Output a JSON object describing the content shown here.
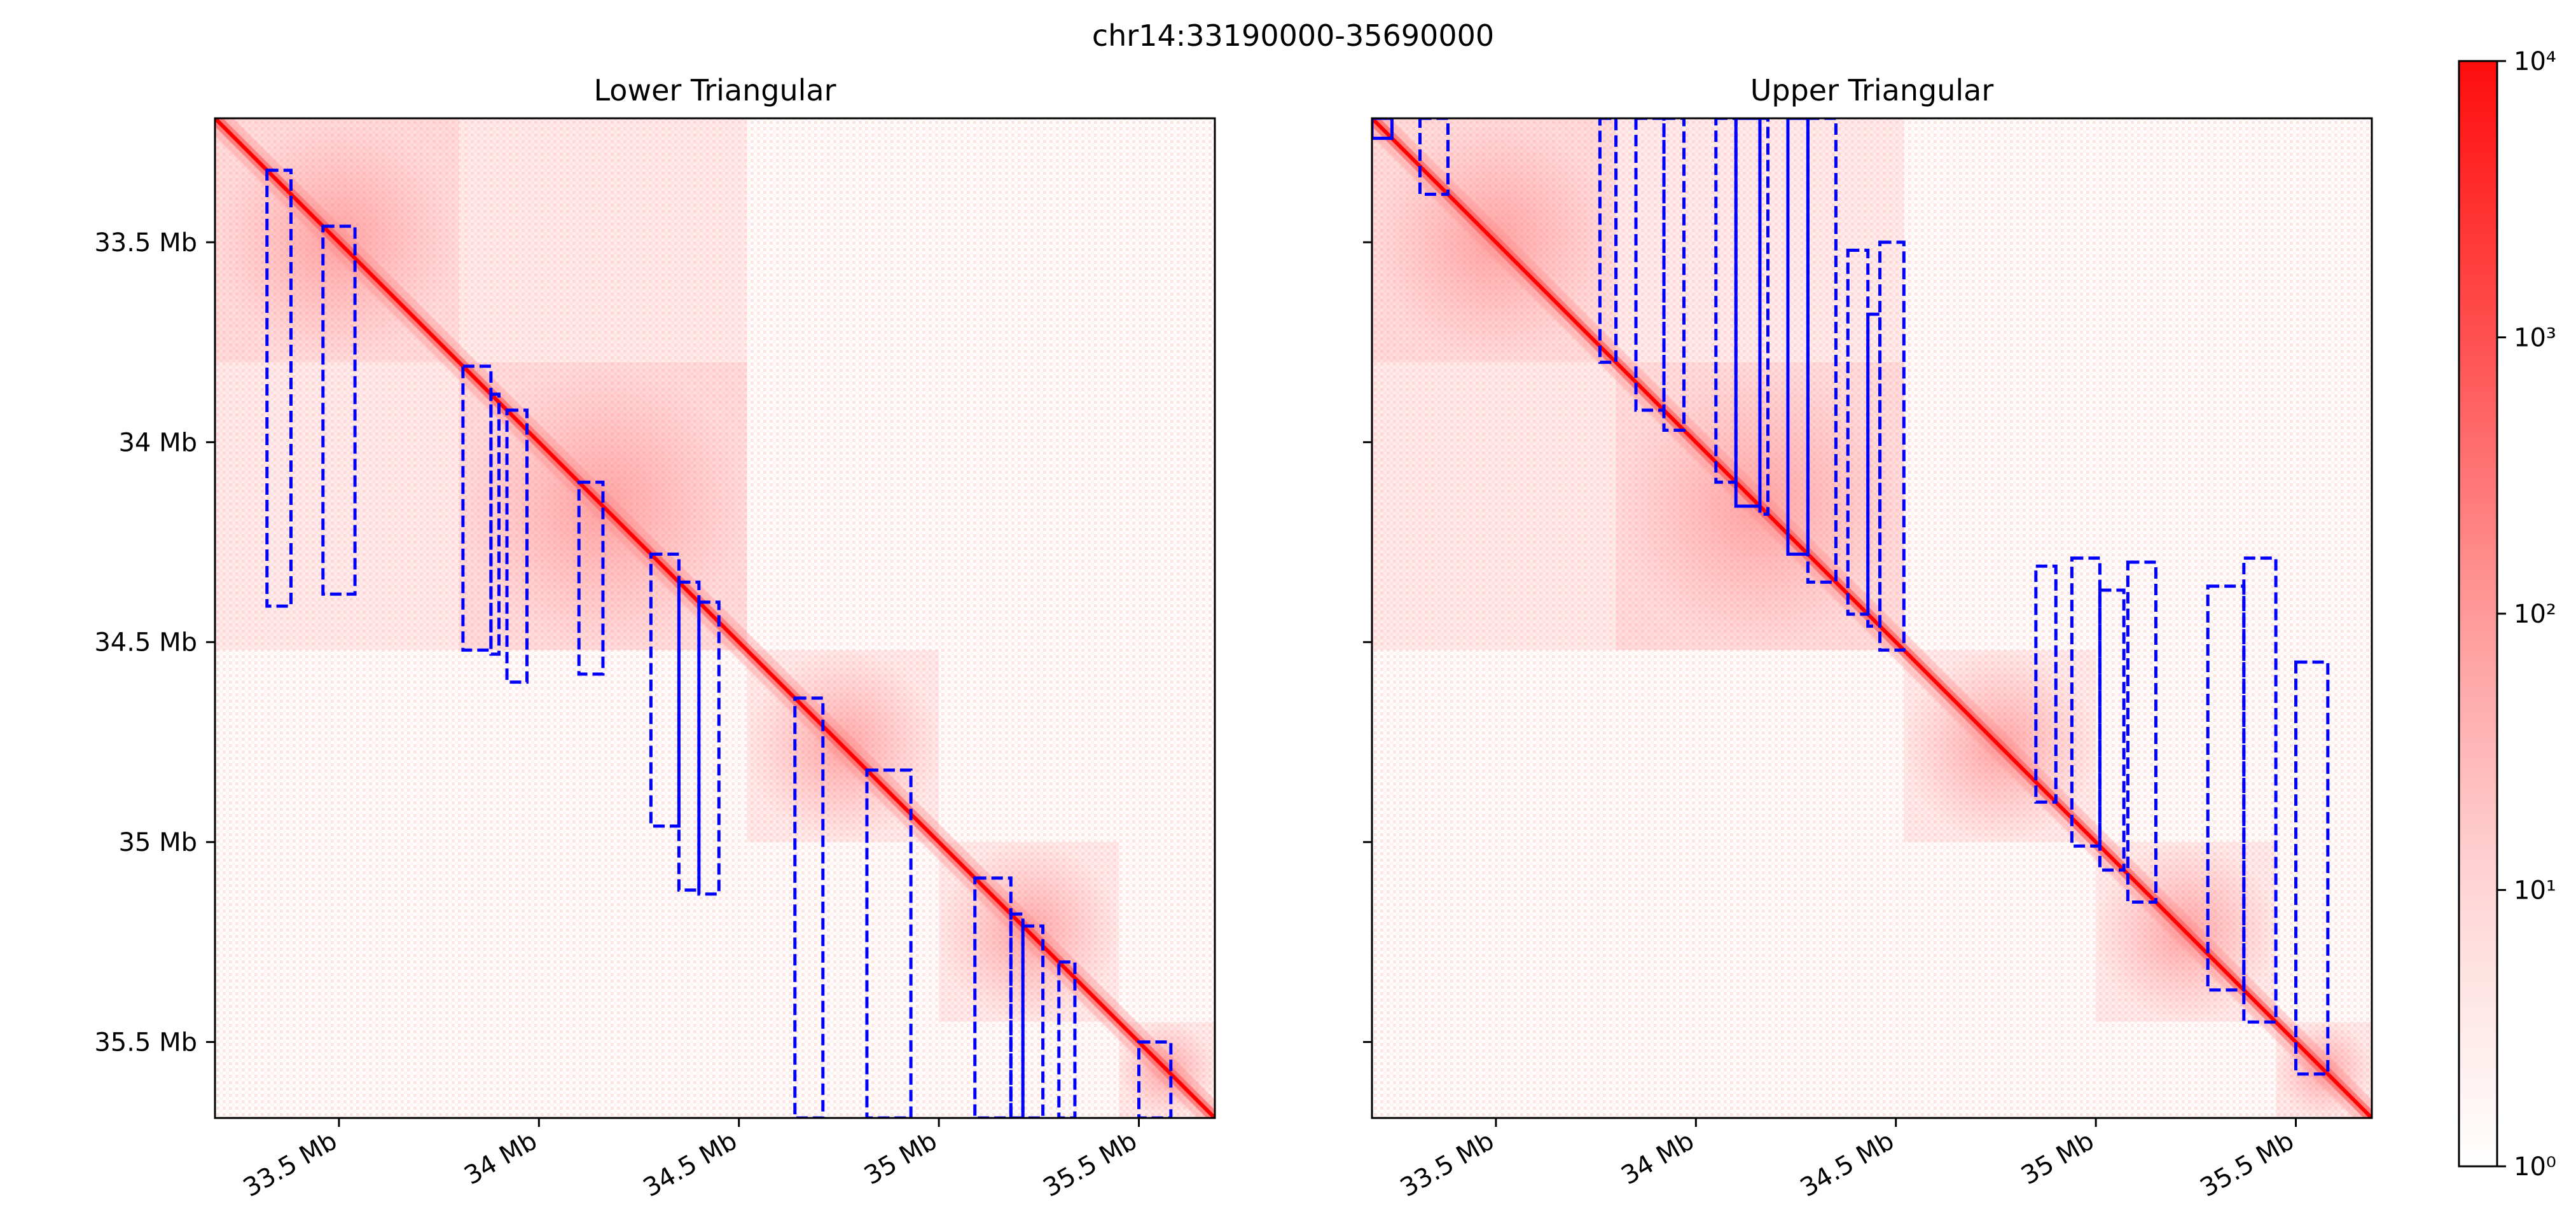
{
  "figure": {
    "title": "chr14:33190000-35690000"
  },
  "chart_data": [
    {
      "type": "heatmap",
      "title": "Lower Triangular",
      "region": "chr14:33190000-35690000",
      "xlim_mb": [
        33.19,
        35.69
      ],
      "ylim_mb": [
        33.19,
        35.69
      ],
      "y_inverted": true,
      "xticks": [
        {
          "value": 33.5,
          "label": "33.5 Mb"
        },
        {
          "value": 34.0,
          "label": "34 Mb"
        },
        {
          "value": 34.5,
          "label": "34.5 Mb"
        },
        {
          "value": 35.0,
          "label": "35 Mb"
        },
        {
          "value": 35.5,
          "label": "35.5 Mb"
        }
      ],
      "yticks": [
        {
          "value": 33.5,
          "label": "33.5 Mb"
        },
        {
          "value": 34.0,
          "label": "34 Mb"
        },
        {
          "value": 34.5,
          "label": "34.5 Mb"
        },
        {
          "value": 35.0,
          "label": "35 Mb"
        },
        {
          "value": 35.5,
          "label": "35.5 Mb"
        }
      ],
      "show_ytick_labels": true,
      "loops": [
        {
          "x0": 33.32,
          "x1": 33.38,
          "y0": 33.32,
          "y1": 34.41,
          "style": "dashed"
        },
        {
          "x0": 33.46,
          "x1": 33.54,
          "y0": 33.46,
          "y1": 34.38,
          "style": "dashed"
        },
        {
          "x0": 33.81,
          "x1": 33.88,
          "y0": 33.81,
          "y1": 34.52,
          "style": "dashed"
        },
        {
          "x0": 33.88,
          "x1": 33.9,
          "y0": 33.88,
          "y1": 34.53,
          "style": "dashed"
        },
        {
          "x0": 33.92,
          "x1": 33.97,
          "y0": 33.92,
          "y1": 34.6,
          "style": "dashed"
        },
        {
          "x0": 34.1,
          "x1": 34.16,
          "y0": 34.1,
          "y1": 34.58,
          "style": "dashed"
        },
        {
          "x0": 34.28,
          "x1": 34.35,
          "y0": 34.28,
          "y1": 34.96,
          "style": "dashed"
        },
        {
          "x0": 34.35,
          "x1": 34.4,
          "y0": 34.35,
          "y1": 35.12,
          "style": "dashed"
        },
        {
          "x0": 34.4,
          "x1": 34.45,
          "y0": 34.4,
          "y1": 35.13,
          "style": "dashed"
        },
        {
          "x0": 34.64,
          "x1": 34.71,
          "y0": 34.64,
          "y1": 35.69,
          "style": "dashed"
        },
        {
          "x0": 34.82,
          "x1": 34.93,
          "y0": 34.82,
          "y1": 35.69,
          "style": "dashed"
        },
        {
          "x0": 35.09,
          "x1": 35.18,
          "y0": 35.09,
          "y1": 35.69,
          "style": "dashed"
        },
        {
          "x0": 35.18,
          "x1": 35.21,
          "y0": 35.18,
          "y1": 35.69,
          "style": "dashed"
        },
        {
          "x0": 35.21,
          "x1": 35.26,
          "y0": 35.21,
          "y1": 35.69,
          "style": "dashed"
        },
        {
          "x0": 35.3,
          "x1": 35.34,
          "y0": 35.3,
          "y1": 35.69,
          "style": "dashed"
        },
        {
          "x0": 35.5,
          "x1": 35.58,
          "y0": 35.5,
          "y1": 35.69,
          "style": "dashed"
        }
      ]
    },
    {
      "type": "heatmap",
      "title": "Upper Triangular",
      "region": "chr14:33190000-35690000",
      "xlim_mb": [
        33.19,
        35.69
      ],
      "ylim_mb": [
        33.19,
        35.69
      ],
      "y_inverted": true,
      "xticks": [
        {
          "value": 33.5,
          "label": "33.5 Mb"
        },
        {
          "value": 34.0,
          "label": "34 Mb"
        },
        {
          "value": 34.5,
          "label": "34.5 Mb"
        },
        {
          "value": 35.0,
          "label": "35 Mb"
        },
        {
          "value": 35.5,
          "label": "35.5 Mb"
        }
      ],
      "yticks": [
        {
          "value": 33.5,
          "label": ""
        },
        {
          "value": 34.0,
          "label": ""
        },
        {
          "value": 34.5,
          "label": ""
        },
        {
          "value": 35.0,
          "label": ""
        },
        {
          "value": 35.5,
          "label": ""
        }
      ],
      "show_ytick_labels": false,
      "loops": [
        {
          "x0": 33.19,
          "x1": 33.24,
          "y0": 33.19,
          "y1": 33.24,
          "style": "solid"
        },
        {
          "x0": 33.31,
          "x1": 33.38,
          "y0": 33.19,
          "y1": 33.38,
          "style": "dashed"
        },
        {
          "x0": 33.76,
          "x1": 33.8,
          "y0": 33.19,
          "y1": 33.8,
          "style": "dashed"
        },
        {
          "x0": 33.85,
          "x1": 33.92,
          "y0": 33.19,
          "y1": 33.92,
          "style": "dashed"
        },
        {
          "x0": 33.92,
          "x1": 33.97,
          "y0": 33.19,
          "y1": 33.97,
          "style": "dashed"
        },
        {
          "x0": 34.05,
          "x1": 34.1,
          "y0": 33.19,
          "y1": 34.1,
          "style": "dashed"
        },
        {
          "x0": 34.1,
          "x1": 34.16,
          "y0": 33.19,
          "y1": 34.16,
          "style": "solid"
        },
        {
          "x0": 34.16,
          "x1": 34.18,
          "y0": 33.19,
          "y1": 34.18,
          "style": "dashed"
        },
        {
          "x0": 34.23,
          "x1": 34.28,
          "y0": 33.19,
          "y1": 34.28,
          "style": "solid"
        },
        {
          "x0": 34.28,
          "x1": 34.35,
          "y0": 33.19,
          "y1": 34.35,
          "style": "dashed"
        },
        {
          "x0": 34.38,
          "x1": 34.43,
          "y0": 33.52,
          "y1": 34.43,
          "style": "dashed"
        },
        {
          "x0": 34.43,
          "x1": 34.46,
          "y0": 33.68,
          "y1": 34.46,
          "style": "dashed"
        },
        {
          "x0": 34.46,
          "x1": 34.52,
          "y0": 33.5,
          "y1": 34.52,
          "style": "dashed"
        },
        {
          "x0": 34.85,
          "x1": 34.9,
          "y0": 34.31,
          "y1": 34.9,
          "style": "dashed"
        },
        {
          "x0": 34.94,
          "x1": 35.01,
          "y0": 34.29,
          "y1": 35.01,
          "style": "dashed"
        },
        {
          "x0": 35.01,
          "x1": 35.07,
          "y0": 34.37,
          "y1": 35.07,
          "style": "dashed"
        },
        {
          "x0": 35.08,
          "x1": 35.15,
          "y0": 34.3,
          "y1": 35.15,
          "style": "dashed"
        },
        {
          "x0": 35.28,
          "x1": 35.37,
          "y0": 34.36,
          "y1": 35.37,
          "style": "dashed"
        },
        {
          "x0": 35.37,
          "x1": 35.45,
          "y0": 34.29,
          "y1": 35.45,
          "style": "dashed"
        },
        {
          "x0": 35.5,
          "x1": 35.58,
          "y0": 34.55,
          "y1": 35.58,
          "style": "dashed"
        }
      ]
    }
  ],
  "colorbar": {
    "scale": "log",
    "range": [
      1,
      10000
    ],
    "cmap": [
      "#ffffff",
      "#ff0000"
    ],
    "ticks": [
      {
        "value": 1,
        "label": "10⁰"
      },
      {
        "value": 10,
        "label": "10¹"
      },
      {
        "value": 100,
        "label": "10²"
      },
      {
        "value": 1000,
        "label": "10³"
      },
      {
        "value": 10000,
        "label": "10⁴"
      }
    ]
  },
  "colors": {
    "loop_stroke": "#0000ff",
    "diagonal": "#ff0000",
    "frame": "#000000"
  }
}
